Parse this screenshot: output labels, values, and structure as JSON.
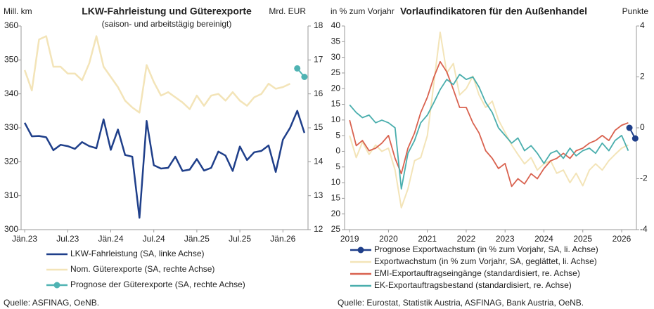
{
  "chart_data": [
    {
      "type": "line",
      "title": "LKW-Fahrleistung und Güterexporte",
      "subtitle": "(saison- und arbeitstägig bereinigt)",
      "y_label": "Mill. km",
      "y2_label": "Mrd. EUR",
      "categories": [
        "Jän.23",
        null,
        null,
        null,
        null,
        null,
        "Jul.23",
        null,
        null,
        null,
        null,
        null,
        "Jän.24",
        null,
        null,
        null,
        null,
        null,
        "Jul.24",
        null,
        null,
        null,
        null,
        null,
        "Jän.25",
        null,
        null,
        null,
        null,
        null,
        "Jul.25",
        null,
        null,
        null,
        null,
        null,
        "Jän.26",
        null,
        null,
        null
      ],
      "ylim": [
        300,
        360
      ],
      "yticks": [
        300,
        310,
        320,
        330,
        340,
        350,
        360
      ],
      "y2lim": [
        12,
        18
      ],
      "y2ticks": [
        12,
        13,
        14,
        15,
        16,
        17,
        18
      ],
      "series": [
        {
          "name": "LKW-Fahrleistung (SA, linke Achse)",
          "color": "#1f3f8a",
          "width": 2.5,
          "values": [
            331.5,
            327.5,
            327.6,
            327.2,
            323.4,
            325,
            324.6,
            323.8,
            325.8,
            324.6,
            324,
            332.5,
            323.5,
            329.5,
            322,
            321.5,
            303.5,
            332,
            319,
            318,
            318.2,
            321.5,
            317.3,
            317.7,
            320.8,
            317.4,
            318.2,
            323,
            321.8,
            317.3,
            324.5,
            320.5,
            322.8,
            323.2,
            324.8,
            317,
            326.5,
            330,
            335,
            328.5
          ]
        },
        {
          "name": "Nom. Güterexporte (SA, rechte Achse)",
          "color": "#f3e4b8",
          "width": 2.5,
          "axis": "y2",
          "values": [
            16.7,
            16.1,
            17.6,
            17.7,
            16.8,
            16.8,
            16.6,
            16.6,
            16.4,
            16.9,
            17.7,
            16.8,
            16.5,
            16.2,
            15.8,
            15.6,
            15.45,
            16.85,
            16.35,
            15.95,
            16.05,
            15.9,
            15.75,
            15.55,
            15.95,
            15.65,
            15.95,
            16.0,
            15.8,
            16.05,
            15.8,
            15.65,
            15.9,
            16.0,
            16.3,
            16.15,
            16.2,
            16.3,
            null,
            null
          ]
        },
        {
          "name": "Prognose der Güterexporte (SA, rechte Achse)",
          "color": "#4fb3b3",
          "width": 2,
          "axis": "y2",
          "marker": true,
          "values": [
            null,
            null,
            null,
            null,
            null,
            null,
            null,
            null,
            null,
            null,
            null,
            null,
            null,
            null,
            null,
            null,
            null,
            null,
            null,
            null,
            null,
            null,
            null,
            null,
            null,
            null,
            null,
            null,
            null,
            null,
            null,
            null,
            null,
            null,
            null,
            null,
            null,
            null,
            16.75,
            16.5
          ]
        }
      ],
      "source": "Quelle: ASFINAG, OeNB."
    },
    {
      "type": "line",
      "title": "Vorlaufindikatoren für den Außenhandel",
      "y_label": "in % zum Vorjahr",
      "y2_label": "Punkte",
      "x": [
        2019,
        2019.17,
        2019.33,
        2019.5,
        2019.67,
        2019.83,
        2020,
        2020.17,
        2020.33,
        2020.5,
        2020.67,
        2020.83,
        2021,
        2021.17,
        2021.33,
        2021.5,
        2021.67,
        2021.83,
        2022,
        2022.17,
        2022.33,
        2022.5,
        2022.67,
        2022.83,
        2023,
        2023.17,
        2023.33,
        2023.5,
        2023.67,
        2023.83,
        2024,
        2024.17,
        2024.33,
        2024.5,
        2024.67,
        2024.83,
        2025,
        2025.17,
        2025.33,
        2025.5,
        2025.67,
        2025.83,
        2026,
        2026.17
      ],
      "xlim": [
        2018.87,
        2026.38
      ],
      "xticks": [
        2019,
        2020,
        2021,
        2022,
        2023,
        2024,
        2025,
        2026
      ],
      "ylim": [
        -25,
        40
      ],
      "yticks": [
        {
          "value": -25,
          "label": "25"
        },
        {
          "value": -20,
          "label": "20"
        },
        {
          "value": -15,
          "label": "15"
        },
        {
          "value": -10,
          "label": "10"
        },
        {
          "value": -5,
          "label": "5"
        },
        0,
        5,
        10,
        15,
        20,
        25,
        30,
        35,
        40
      ],
      "y2lim": [
        -4,
        4
      ],
      "y2ticks": [
        -4,
        -2,
        0,
        2,
        4
      ],
      "series": [
        {
          "name": "Prognose Exportwachstum (in % zum Vorjahr, SA, li. Achse)",
          "color": "#1f3f8a",
          "width": 2,
          "marker": true,
          "x": [
            2026.2,
            2026.35
          ],
          "values": [
            7.5,
            4.1
          ]
        },
        {
          "name": "Exportwachstum (in % zum Vorjahr, SA, geglättet, li. Achse)",
          "color": "#f3e4b8",
          "width": 2,
          "values": [
            5,
            -2,
            3,
            -1,
            2,
            0,
            1,
            -6,
            -18,
            -12,
            -3,
            -2,
            5,
            22,
            38,
            25,
            28,
            18,
            20,
            24,
            18,
            14,
            16,
            10,
            6,
            2,
            -1,
            -4,
            -2,
            -6,
            -4,
            -3,
            -7,
            -6,
            -10,
            -7,
            -11,
            -6,
            -4,
            -6,
            -3,
            -1,
            1,
            2
          ]
        },
        {
          "name": "EMI-Exportauftragseingänge (standardisiert, re. Achse)",
          "color": "#d9624f",
          "width": 1.8,
          "axis": "y2",
          "values": [
            0.3,
            -0.7,
            -0.5,
            -0.9,
            -0.8,
            -0.6,
            -0.3,
            -1.2,
            -1.8,
            -0.8,
            -0.2,
            0.6,
            1.2,
            2.0,
            2.6,
            2.2,
            1.5,
            0.8,
            0.8,
            0.2,
            -0.2,
            -0.9,
            -1.2,
            -1.6,
            -1.4,
            -2.3,
            -2.0,
            -2.2,
            -1.8,
            -2.0,
            -1.6,
            -1.3,
            -1.2,
            -1.0,
            -1.2,
            -0.9,
            -0.8,
            -0.6,
            -0.5,
            -0.3,
            -0.5,
            -0.1,
            0.1,
            0.2
          ]
        },
        {
          "name": "EK-Exportauftragsbestand (standardisiert, re. Achse)",
          "color": "#4aaead",
          "width": 1.8,
          "axis": "y2",
          "values": [
            0.9,
            0.6,
            0.4,
            0.5,
            0.2,
            0.3,
            0.2,
            0.0,
            -2.4,
            -1.0,
            -0.5,
            0.2,
            0.5,
            1.0,
            1.5,
            1.9,
            1.7,
            2.1,
            1.9,
            2.0,
            1.6,
            1.0,
            0.6,
            0.0,
            -0.3,
            -0.6,
            -0.4,
            -0.9,
            -0.7,
            -1.0,
            -1.4,
            -1.0,
            -0.9,
            -1.2,
            -0.8,
            -1.1,
            -0.9,
            -0.8,
            -1.0,
            -0.6,
            -0.9,
            -0.5,
            -0.3,
            -0.9
          ]
        }
      ],
      "source": "Quelle: Eurostat, Statistik Austria, ASFINAG, Bank Austria, OeNB."
    }
  ]
}
